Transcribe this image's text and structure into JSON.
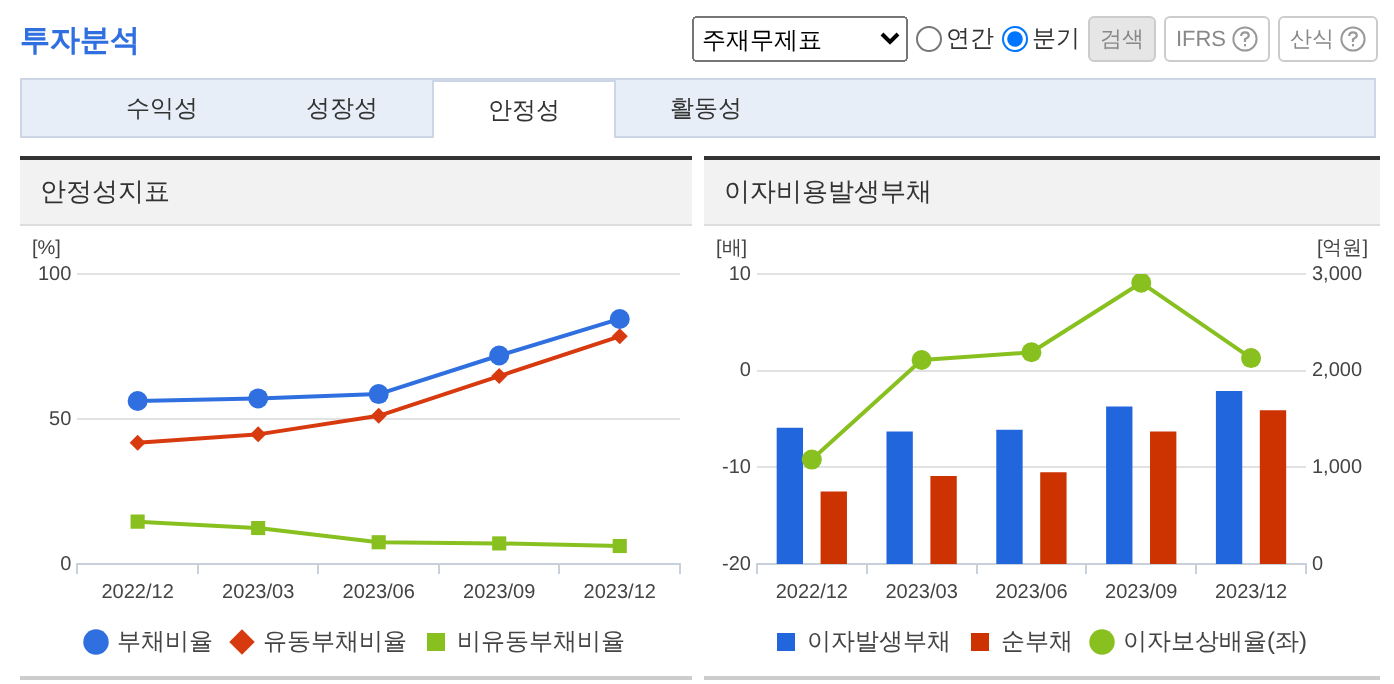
{
  "chart_data": [
    {
      "type": "line",
      "title": "안정성지표",
      "ylabel": "[%]",
      "categories": [
        "2022/12",
        "2023/03",
        "2023/06",
        "2023/09",
        "2023/12"
      ],
      "ylim": [
        0,
        100
      ],
      "yticks": [
        0,
        50,
        100
      ],
      "grid": "y",
      "legend": "bottom",
      "annotations": [
        "투자분석",
        "주재무제표",
        "연간",
        "분기",
        "검색",
        "IFRS",
        "산식",
        "수익성",
        "성장성",
        "안정성",
        "활동성"
      ],
      "series": [
        {
          "name": "부채비율",
          "color": "#2f6fe0",
          "marker": "circle",
          "values": [
            56.2,
            57.1,
            58.6,
            71.9,
            84.5
          ]
        },
        {
          "name": "유동부채비율",
          "color": "#d83a10",
          "marker": "diamond",
          "values": [
            41.8,
            44.7,
            51.1,
            64.8,
            78.5
          ]
        },
        {
          "name": "비유동부채비율",
          "color": "#88c020",
          "marker": "square",
          "values": [
            14.6,
            12.4,
            7.5,
            7.1,
            6.2
          ]
        }
      ]
    },
    {
      "type": "bar",
      "title": "이자비용발생부채",
      "ylabel": "[배]",
      "y2label": "[억원]",
      "categories": [
        "2022/12",
        "2023/03",
        "2023/06",
        "2023/09",
        "2023/12"
      ],
      "ylim": [
        -20,
        10
      ],
      "yticks": [
        -20,
        -10,
        0,
        10
      ],
      "y2lim": [
        0,
        3000
      ],
      "y2ticks": [
        0,
        {
          "value": 1000,
          "label": "1,000"
        },
        {
          "value": 2000,
          "label": "2,000"
        },
        {
          "value": 3000,
          "label": "3,000"
        }
      ],
      "grid": "y",
      "legend": "bottom",
      "series": [
        {
          "name": "이자발생부채",
          "color": "#2266dd",
          "axis": "y2",
          "values": [
            1410,
            1370,
            1390,
            1630,
            1790
          ]
        },
        {
          "name": "순부채",
          "color": "#cc3300",
          "axis": "y2",
          "values": [
            750,
            910,
            950,
            1370,
            1590
          ]
        },
        {
          "name": "이자보상배율(좌)",
          "type": "line",
          "color": "#88c020",
          "marker": "circle",
          "values": [
            -9.2,
            1.1,
            1.9,
            9.1,
            1.3
          ]
        }
      ]
    }
  ]
}
